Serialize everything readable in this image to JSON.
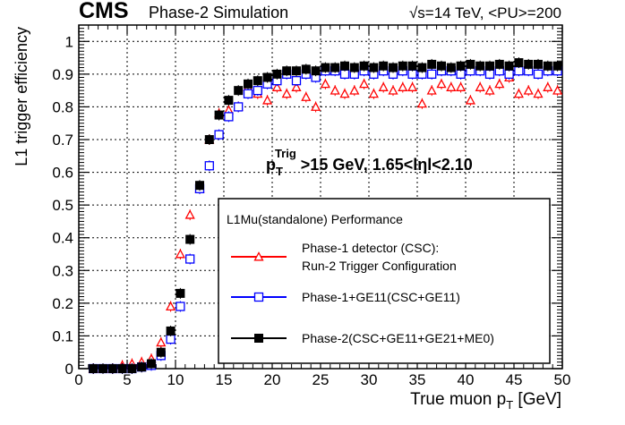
{
  "header": {
    "experiment": "CMS",
    "subtitle": "Phase-2 Simulation",
    "energy": "√s=14 TeV, <PU>=200"
  },
  "cut_label": {
    "main": "p",
    "sub": "T",
    "sup": "Trig",
    "rest": " >15 GeV, 1.65<lηl<2.10"
  },
  "legend": {
    "title": "L1Mu(standalone) Performance",
    "entries": [
      {
        "series": 0,
        "lines": [
          "Phase-1 detector (CSC):",
          "Run-2 Trigger Configuration"
        ]
      },
      {
        "series": 1,
        "lines": [
          "Phase-1+GE11(CSC+GE11)"
        ]
      },
      {
        "series": 2,
        "lines": [
          "Phase-2(CSC+GE11+GE21+ME0)"
        ]
      }
    ]
  },
  "chart_data": {
    "type": "scatter",
    "xlabel_main": "True muon p",
    "xlabel_sub": "T",
    "xlabel_unit": " [GeV]",
    "ylabel": "L1 trigger efficiency",
    "xlim": [
      0,
      50
    ],
    "ylim": [
      0,
      1.05
    ],
    "xticks": [
      0,
      5,
      10,
      15,
      20,
      25,
      30,
      35,
      40,
      45,
      50
    ],
    "yticks": [
      0,
      0.1,
      0.2,
      0.3,
      0.4,
      0.5,
      0.6,
      0.7,
      0.8,
      0.9,
      1
    ],
    "ytick_labels": [
      "0",
      "0.1",
      "0.2",
      "0.3",
      "0.4",
      "0.5",
      "0.6",
      "0.7",
      "0.8",
      "0.9",
      "1"
    ],
    "grid": true,
    "legend_position": "bottom-right",
    "series": [
      {
        "marker": "open-triangle",
        "color": "#ff0000",
        "x": [
          1.5,
          2.5,
          3.5,
          4.5,
          5.5,
          6.5,
          7.5,
          8.5,
          9.5,
          10.5,
          11.5,
          12.5,
          13.5,
          14.5,
          15.5,
          16.5,
          17.5,
          18.5,
          19.5,
          20.5,
          21.5,
          22.5,
          23.5,
          24.5,
          25.5,
          26.5,
          27.5,
          28.5,
          29.5,
          30.5,
          31.5,
          32.5,
          33.5,
          34.5,
          35.5,
          36.5,
          37.5,
          38.5,
          39.5,
          40.5,
          41.5,
          42.5,
          43.5,
          44.5,
          45.5,
          46.5,
          47.5,
          48.5,
          49.5
        ],
        "y": [
          0.0,
          0.0,
          0.0,
          0.01,
          0.015,
          0.02,
          0.03,
          0.08,
          0.19,
          0.35,
          0.47,
          0.55,
          0.7,
          0.78,
          0.79,
          0.8,
          0.86,
          0.84,
          0.82,
          0.86,
          0.84,
          0.86,
          0.83,
          0.8,
          0.87,
          0.85,
          0.84,
          0.85,
          0.87,
          0.84,
          0.86,
          0.85,
          0.86,
          0.86,
          0.81,
          0.85,
          0.87,
          0.86,
          0.86,
          0.82,
          0.86,
          0.85,
          0.87,
          0.89,
          0.84,
          0.85,
          0.84,
          0.86,
          0.85
        ]
      },
      {
        "marker": "open-square",
        "color": "#0000ff",
        "x": [
          1.5,
          2.5,
          3.5,
          4.5,
          5.5,
          6.5,
          7.5,
          8.5,
          9.5,
          10.5,
          11.5,
          12.5,
          13.5,
          14.5,
          15.5,
          16.5,
          17.5,
          18.5,
          19.5,
          20.5,
          21.5,
          22.5,
          23.5,
          24.5,
          25.5,
          26.5,
          27.5,
          28.5,
          29.5,
          30.5,
          31.5,
          32.5,
          33.5,
          34.5,
          35.5,
          36.5,
          37.5,
          38.5,
          39.5,
          40.5,
          41.5,
          42.5,
          43.5,
          44.5,
          45.5,
          46.5,
          47.5,
          48.5,
          49.5
        ],
        "y": [
          0.0,
          0.0,
          0.0,
          0.0,
          0.0,
          0.005,
          0.01,
          0.04,
          0.09,
          0.19,
          0.335,
          0.55,
          0.62,
          0.715,
          0.77,
          0.8,
          0.84,
          0.85,
          0.87,
          0.88,
          0.9,
          0.88,
          0.9,
          0.89,
          0.91,
          0.91,
          0.9,
          0.9,
          0.91,
          0.9,
          0.91,
          0.9,
          0.91,
          0.9,
          0.9,
          0.9,
          0.91,
          0.91,
          0.9,
          0.91,
          0.91,
          0.9,
          0.91,
          0.9,
          0.91,
          0.91,
          0.9,
          0.91,
          0.91
        ]
      },
      {
        "marker": "filled-square",
        "color": "#000000",
        "x": [
          1.5,
          2.5,
          3.5,
          4.5,
          5.5,
          6.5,
          7.5,
          8.5,
          9.5,
          10.5,
          11.5,
          12.5,
          13.5,
          14.5,
          15.5,
          16.5,
          17.5,
          18.5,
          19.5,
          20.5,
          21.5,
          22.5,
          23.5,
          24.5,
          25.5,
          26.5,
          27.5,
          28.5,
          29.5,
          30.5,
          31.5,
          32.5,
          33.5,
          34.5,
          35.5,
          36.5,
          37.5,
          38.5,
          39.5,
          40.5,
          41.5,
          42.5,
          43.5,
          44.5,
          45.5,
          46.5,
          47.5,
          48.5,
          49.5
        ],
        "y": [
          0.0,
          0.0,
          0.0,
          0.0,
          0.0,
          0.005,
          0.015,
          0.05,
          0.115,
          0.23,
          0.395,
          0.56,
          0.7,
          0.775,
          0.82,
          0.85,
          0.87,
          0.88,
          0.89,
          0.9,
          0.91,
          0.91,
          0.915,
          0.91,
          0.92,
          0.92,
          0.925,
          0.92,
          0.925,
          0.92,
          0.925,
          0.92,
          0.925,
          0.925,
          0.92,
          0.93,
          0.925,
          0.92,
          0.925,
          0.93,
          0.925,
          0.925,
          0.93,
          0.925,
          0.935,
          0.93,
          0.93,
          0.925,
          0.925
        ]
      }
    ]
  }
}
